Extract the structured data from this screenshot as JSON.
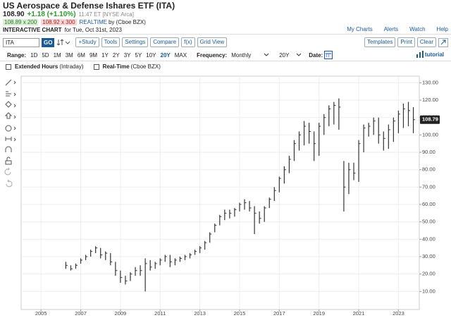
{
  "header": {
    "title": "US Aerospace & Defense Ishares ETF (ITA)",
    "last": "108.90",
    "change": "+1.18 (+1.10%)",
    "time": "11:47 ET [NYSE Arca]",
    "bid": "108.89 x 200",
    "ask": "108.92 x 300",
    "realtime": "REALTIME",
    "source": "by (Cboe BZX)",
    "chart_label": "INTERACTIVE CHART",
    "date": "for Tue, Oct 31st, 2023",
    "links": [
      "My Charts",
      "Alerts",
      "Watch",
      "Help"
    ]
  },
  "toolbar": {
    "symbol": "ITA",
    "go": "GO",
    "buttons": [
      "+Study",
      "Tools",
      "Settings",
      "Compare",
      "f(x)",
      "Grid View"
    ],
    "right_buttons": [
      "Templates",
      "Print",
      "Clear"
    ]
  },
  "range_bar": {
    "range_label": "Range:",
    "ranges": [
      "1D",
      "5D",
      "1M",
      "3M",
      "6M",
      "9M",
      "1Y",
      "2Y",
      "3Y",
      "5Y",
      "10Y",
      "20Y",
      "MAX"
    ],
    "selected": "20Y",
    "frequency_label": "Frequency:",
    "frequency": "Monthly",
    "period": "20Y",
    "date_label": "Date:",
    "tutorial": "tutorial"
  },
  "options": {
    "extended_hours": "Extended Hours",
    "extended_note": "(Intraday)",
    "real_time": "Real-Time",
    "real_time_note": "(Cboe BZX)"
  },
  "chart_data": {
    "type": "ohlc",
    "color": "#333333",
    "grid": true,
    "x": [
      2006.25,
      2006.5,
      2006.75,
      2007,
      2007.25,
      2007.5,
      2007.75,
      2008,
      2008.25,
      2008.5,
      2008.75,
      2009,
      2009.25,
      2009.5,
      2009.75,
      2010,
      2010.25,
      2010.5,
      2010.75,
      2011,
      2011.25,
      2011.5,
      2011.75,
      2012,
      2012.25,
      2012.5,
      2012.75,
      2013,
      2013.25,
      2013.5,
      2013.75,
      2014,
      2014.25,
      2014.5,
      2014.75,
      2015,
      2015.25,
      2015.5,
      2015.75,
      2016,
      2016.25,
      2016.5,
      2016.75,
      2017,
      2017.25,
      2017.5,
      2017.75,
      2018,
      2018.25,
      2018.5,
      2018.75,
      2019,
      2019.25,
      2019.5,
      2019.75,
      2020,
      2020.25,
      2020.5,
      2020.75,
      2021,
      2021.25,
      2021.5,
      2021.75,
      2022,
      2022.25,
      2022.5,
      2022.75,
      2023,
      2023.25,
      2023.5,
      2023.75
    ],
    "high": [
      27,
      25,
      26,
      29,
      31,
      34,
      36,
      35,
      33,
      32,
      27,
      22,
      19,
      21,
      24,
      25,
      29,
      28,
      27,
      29,
      31,
      31,
      29,
      30,
      31,
      32,
      34,
      36,
      39,
      44,
      49,
      54,
      57,
      57,
      58,
      61,
      63,
      62,
      59,
      56,
      59,
      64,
      70,
      76,
      82,
      88,
      97,
      102,
      108,
      107,
      102,
      107,
      112,
      117,
      119,
      121,
      85,
      84,
      84,
      97,
      106,
      107,
      110,
      110,
      102,
      106,
      110,
      114,
      118,
      119,
      116
    ],
    "low": [
      23,
      22,
      23,
      26,
      28,
      30,
      32,
      29,
      28,
      25,
      19,
      15,
      14,
      16,
      19,
      19,
      10,
      22,
      23,
      25,
      27,
      24,
      25,
      27,
      28,
      29,
      31,
      32,
      34,
      38,
      44,
      48,
      51,
      52,
      53,
      56,
      57,
      56,
      43,
      49,
      50,
      58,
      62,
      67,
      72,
      78,
      85,
      91,
      94,
      95,
      85,
      88,
      100,
      105,
      106,
      103,
      56,
      66,
      74,
      73,
      90,
      99,
      100,
      95,
      91,
      92,
      96,
      101,
      104,
      105,
      101
    ],
    "close": [
      25,
      23,
      25,
      28,
      30,
      33,
      35,
      31,
      32,
      27,
      22,
      18,
      16,
      20,
      22,
      22,
      26,
      24,
      26,
      28,
      30,
      27,
      28,
      29,
      30,
      31,
      33,
      35,
      38,
      43,
      48,
      53,
      55,
      55,
      57,
      60,
      61,
      58,
      55,
      52,
      58,
      63,
      68,
      75,
      80,
      86,
      95,
      100,
      105,
      102,
      95,
      105,
      110,
      115,
      117,
      116,
      70,
      80,
      78,
      95,
      104,
      105,
      108,
      100,
      98,
      103,
      108,
      112,
      115,
      114,
      108.79
    ],
    "xlim": [
      2004,
      2024.05
    ],
    "xticks": [
      2005,
      2007,
      2009,
      2011,
      2013,
      2015,
      2017,
      2019,
      2021,
      2023
    ],
    "ylim": [
      0,
      133
    ],
    "yticks": [
      {
        "value": 10,
        "label": "10.00"
      },
      {
        "value": 20,
        "label": "20.00"
      },
      {
        "value": 30,
        "label": "30.00"
      },
      {
        "value": 40,
        "label": "40.00"
      },
      {
        "value": 50,
        "label": "50.00"
      },
      {
        "value": 60,
        "label": "60.00"
      },
      {
        "value": 70,
        "label": "70.00"
      },
      {
        "value": 80,
        "label": "80.00"
      },
      {
        "value": 90,
        "label": "90.00"
      },
      {
        "value": 100,
        "label": "100.00"
      },
      {
        "value": 110,
        "label": "110.00"
      },
      {
        "value": 120,
        "label": "120.00"
      },
      {
        "value": 130,
        "label": "130.00"
      }
    ]
  }
}
